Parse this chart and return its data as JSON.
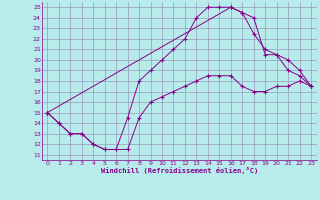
{
  "xlabel": "Windchill (Refroidissement éolien,°C)",
  "bg_color": "#b8ecec",
  "line_color": "#880088",
  "grid_color": "#9999bb",
  "xlim": [
    -0.5,
    23.5
  ],
  "ylim": [
    10.5,
    25.5
  ],
  "xticks": [
    0,
    1,
    2,
    3,
    4,
    5,
    6,
    7,
    8,
    9,
    10,
    11,
    12,
    13,
    14,
    15,
    16,
    17,
    18,
    19,
    20,
    21,
    22,
    23
  ],
  "yticks": [
    11,
    12,
    13,
    14,
    15,
    16,
    17,
    18,
    19,
    20,
    21,
    22,
    23,
    24,
    25
  ],
  "line1_x": [
    0,
    1,
    2,
    3,
    4,
    5,
    6,
    7,
    8,
    9,
    10,
    11,
    12,
    13,
    14,
    15,
    16,
    17,
    18,
    19,
    20,
    21,
    22,
    23
  ],
  "line1_y": [
    15,
    14,
    13,
    13,
    12,
    11.5,
    11.5,
    11.5,
    14.5,
    16,
    16.5,
    17,
    17.5,
    18,
    18.5,
    18.5,
    18.5,
    17.5,
    17,
    17,
    17.5,
    17.5,
    18,
    17.5
  ],
  "line2_x": [
    0,
    1,
    2,
    3,
    4,
    5,
    6,
    7,
    8,
    9,
    10,
    11,
    12,
    13,
    14,
    15,
    16,
    17,
    18,
    19,
    20,
    21,
    22,
    23
  ],
  "line2_y": [
    15,
    14,
    13,
    13,
    12,
    11.5,
    11.5,
    14.5,
    18,
    19,
    20,
    21,
    22,
    24,
    25,
    25,
    25,
    24.5,
    22.5,
    21,
    20.5,
    19,
    18.5,
    17.5
  ],
  "line3_x": [
    0,
    16,
    17,
    18,
    19,
    20,
    21,
    22,
    23
  ],
  "line3_y": [
    15,
    25,
    24.5,
    24,
    20.5,
    20.5,
    20,
    19,
    17.5
  ]
}
